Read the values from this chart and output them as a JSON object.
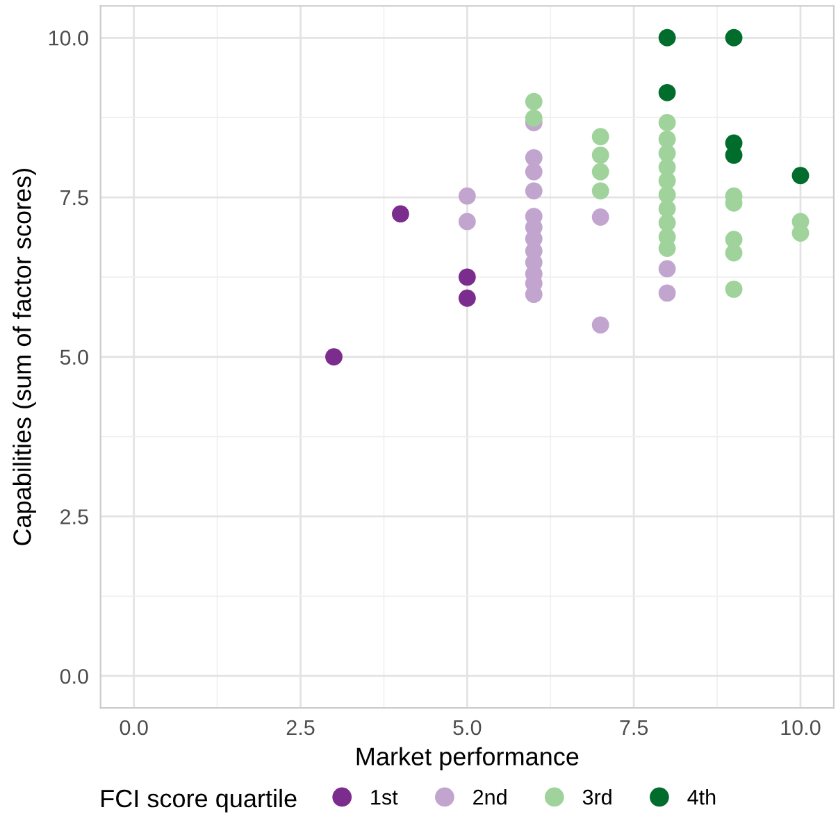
{
  "chart_data": {
    "type": "scatter",
    "xlabel": "Market performance",
    "ylabel": "Capabilities (sum of factor scores)",
    "legend_title": "FCI score quartile",
    "xlim": [
      -0.5,
      10.5
    ],
    "ylim": [
      -0.5,
      10.5
    ],
    "xticks": [
      {
        "value": 0,
        "label": "0.0"
      },
      2.5,
      {
        "value": 5,
        "label": "5.0"
      },
      7.5,
      {
        "value": 10,
        "label": "10.0"
      }
    ],
    "yticks": [
      {
        "value": 0,
        "label": "0.0"
      },
      2.5,
      {
        "value": 5,
        "label": "5.0"
      },
      7.5,
      {
        "value": 10,
        "label": "10.0"
      }
    ],
    "grid": true,
    "legend": "bottom",
    "marker": "circle",
    "series": [
      {
        "name": "1st",
        "color": "#7b2d8e",
        "x": [
          3,
          4,
          5,
          5
        ],
        "values": [
          5.0,
          7.24,
          6.25,
          5.92
        ]
      },
      {
        "name": "2nd",
        "color": "#c2a5cf",
        "x": [
          5,
          5,
          6,
          6,
          6,
          6,
          6,
          6,
          6,
          6,
          6,
          6,
          6,
          6,
          7,
          7,
          8,
          8
        ],
        "values": [
          7.52,
          7.12,
          8.67,
          8.12,
          7.9,
          7.6,
          7.2,
          7.03,
          6.85,
          6.66,
          6.48,
          6.3,
          6.15,
          5.98,
          7.19,
          5.5,
          6.38,
          6.0
        ]
      },
      {
        "name": "3rd",
        "color": "#a0d39b",
        "x": [
          6,
          6,
          7,
          7,
          7,
          7,
          8,
          8,
          8,
          8,
          8,
          8,
          8,
          8,
          8,
          8,
          9,
          9,
          9,
          9,
          9,
          10,
          10
        ],
        "values": [
          9.0,
          8.74,
          8.45,
          8.16,
          7.9,
          7.6,
          8.67,
          8.41,
          8.19,
          7.97,
          7.76,
          7.54,
          7.32,
          7.1,
          6.88,
          6.7,
          7.52,
          7.41,
          6.84,
          6.63,
          6.06,
          7.12,
          6.94
        ]
      },
      {
        "name": "4th",
        "color": "#006d2c",
        "x": [
          8,
          8,
          9,
          9,
          9,
          10
        ],
        "values": [
          10.0,
          9.14,
          10.0,
          8.35,
          8.16,
          7.84
        ]
      }
    ]
  }
}
